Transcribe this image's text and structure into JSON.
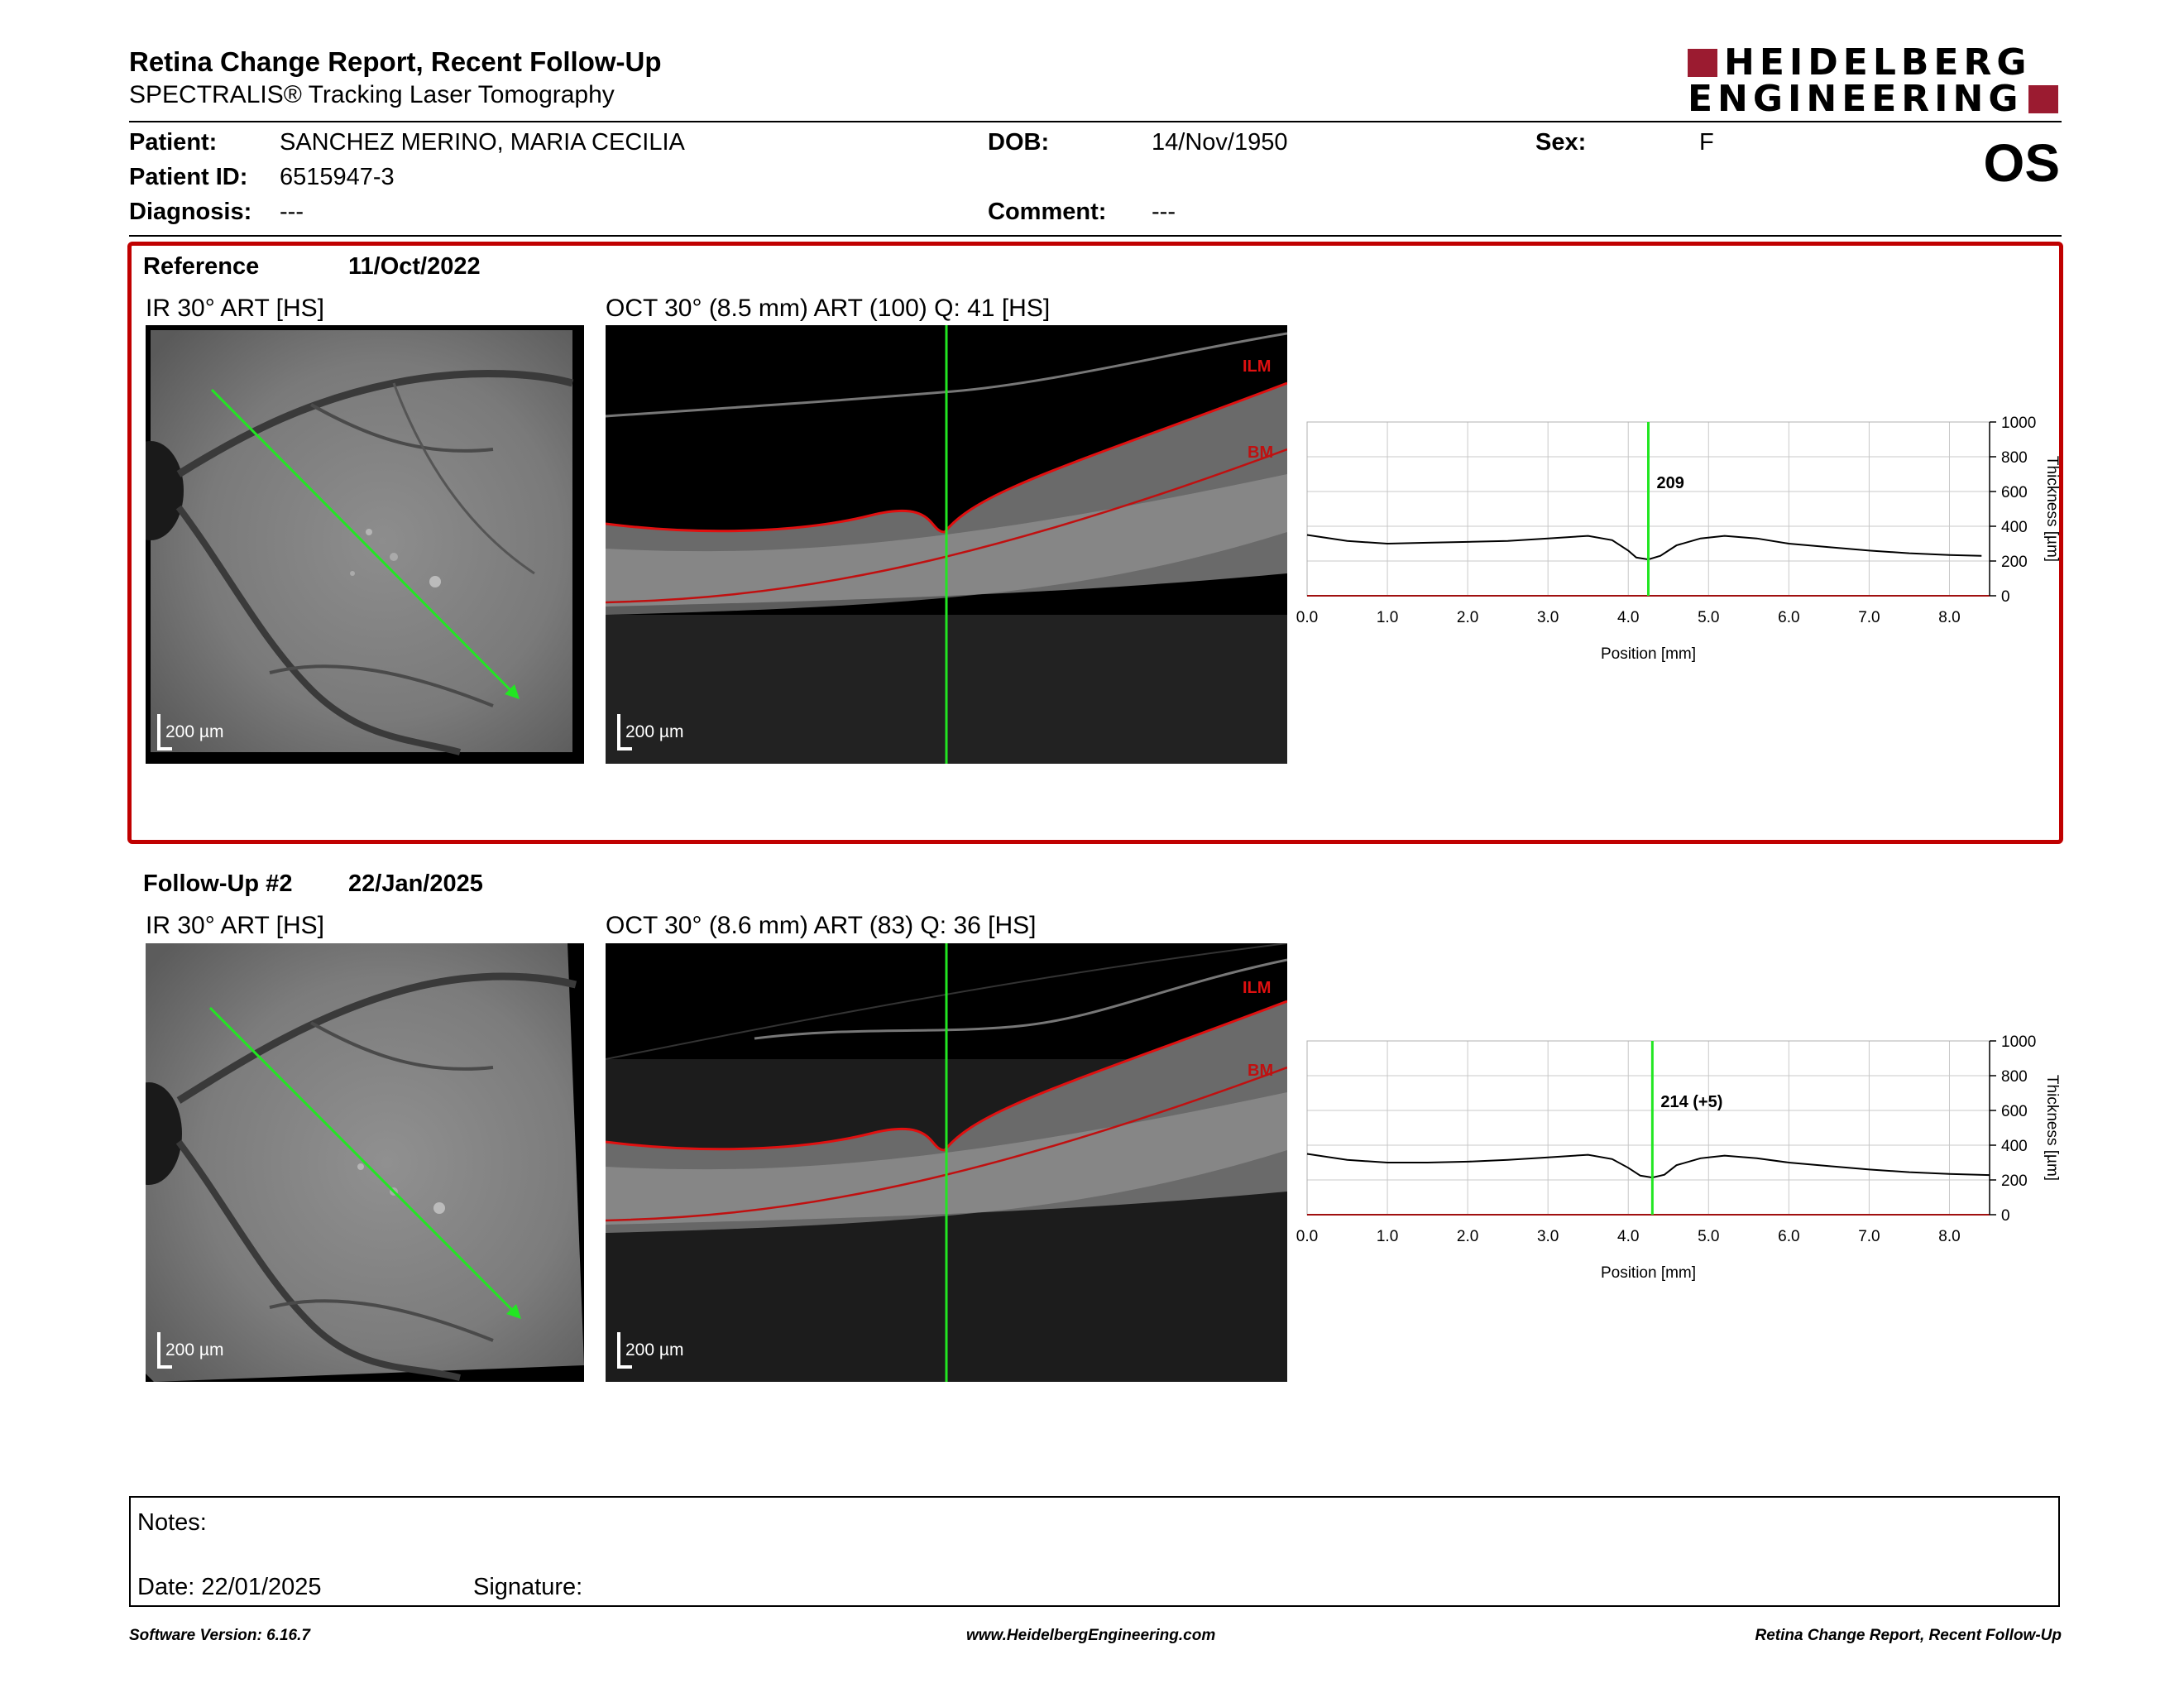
{
  "header": {
    "title": "Retina Change Report, Recent Follow-Up",
    "subtitle": "SPECTRALIS® Tracking Laser Tomography",
    "logo_line1": "HEIDELBERG",
    "logo_line2": "ENGINEERING",
    "eye": "OS"
  },
  "patient": {
    "name_label": "Patient:",
    "name": "SANCHEZ MERINO, MARIA CECILIA",
    "id_label": "Patient ID:",
    "id": "6515947-3",
    "diagnosis_label": "Diagnosis:",
    "diagnosis": "---",
    "dob_label": "DOB:",
    "dob": "14/Nov/1950",
    "comment_label": "Comment:",
    "comment": "---",
    "sex_label": "Sex:",
    "sex": "F"
  },
  "reference": {
    "label": "Reference",
    "date": "11/Oct/2022",
    "ir_title": "IR 30° ART [HS]",
    "oct_title": "OCT 30° (8.5 mm) ART (100) Q: 41 [HS]",
    "scale_label": "200 µm",
    "ilm": "ILM",
    "bm": "BM"
  },
  "followup": {
    "label": "Follow-Up #2",
    "date": "22/Jan/2025",
    "ir_title": "IR 30° ART [HS]",
    "oct_title": "OCT 30° (8.6 mm) ART (83) Q: 36 [HS]",
    "scale_label": "200 µm",
    "ilm": "ILM",
    "bm": "BM"
  },
  "chart_data": [
    {
      "type": "line",
      "xlabel": "Position [mm]",
      "ylabel": "Thickness [µm]",
      "xlim": [
        0,
        8.5
      ],
      "ylim": [
        0,
        1000
      ],
      "x_ticks": [
        "0.0",
        "1.0",
        "2.0",
        "3.0",
        "4.0",
        "5.0",
        "6.0",
        "7.0",
        "8.0"
      ],
      "y_ticks": [
        "0",
        "200",
        "400",
        "600",
        "800",
        "1000"
      ],
      "marker_x": 4.25,
      "marker_label": "209",
      "x": [
        0,
        0.5,
        1.0,
        1.5,
        2.0,
        2.5,
        3.0,
        3.5,
        3.8,
        4.0,
        4.1,
        4.25,
        4.4,
        4.6,
        4.9,
        5.2,
        5.6,
        6.0,
        6.5,
        7.0,
        7.5,
        8.0,
        8.4
      ],
      "series": [
        {
          "values": [
            350,
            315,
            300,
            305,
            310,
            315,
            330,
            345,
            320,
            260,
            220,
            209,
            230,
            290,
            330,
            345,
            330,
            300,
            280,
            260,
            245,
            235,
            230
          ]
        }
      ]
    },
    {
      "type": "line",
      "xlabel": "Position [mm]",
      "ylabel": "Thickness [µm]",
      "xlim": [
        0,
        8.5
      ],
      "ylim": [
        0,
        1000
      ],
      "x_ticks": [
        "0.0",
        "1.0",
        "2.0",
        "3.0",
        "4.0",
        "5.0",
        "6.0",
        "7.0",
        "8.0"
      ],
      "y_ticks": [
        "0",
        "200",
        "400",
        "600",
        "800",
        "1000"
      ],
      "marker_x": 4.3,
      "marker_label": "214 (+5)",
      "x": [
        0,
        0.5,
        1.0,
        1.5,
        2.0,
        2.5,
        3.0,
        3.5,
        3.8,
        4.0,
        4.15,
        4.3,
        4.45,
        4.6,
        4.9,
        5.2,
        5.6,
        6.0,
        6.5,
        7.0,
        7.5,
        8.0,
        8.5
      ],
      "series": [
        {
          "values": [
            350,
            315,
            300,
            300,
            305,
            315,
            330,
            345,
            320,
            270,
            225,
            214,
            230,
            285,
            325,
            340,
            325,
            300,
            280,
            260,
            245,
            235,
            228
          ]
        }
      ]
    }
  ],
  "notes": {
    "notes_label": "Notes:",
    "date_label": "Date: 22/01/2025",
    "signature_label": "Signature:"
  },
  "footer": {
    "software": "Software Version: 6.16.7",
    "website": "www.HeidelbergEngineering.com",
    "report": "Retina Change Report, Recent Follow-Up"
  }
}
